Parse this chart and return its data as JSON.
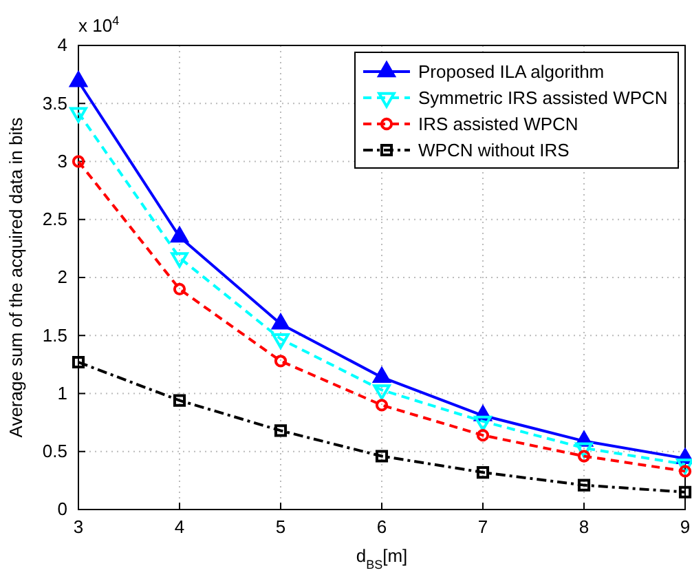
{
  "chart_data": {
    "type": "line",
    "xlabel": "d$_{BS}$[m]",
    "ylabel": "Average sum of the acquired data in bits",
    "annotations": [
      "x 10$^{4}$"
    ],
    "x": [
      3,
      4,
      5,
      6,
      7,
      8,
      9
    ],
    "xlim": [
      3,
      9
    ],
    "xticks": [
      3,
      4,
      5,
      6,
      7,
      8,
      9
    ],
    "ylim": [
      0,
      4
    ],
    "yticks": [
      0,
      0.5,
      1,
      1.5,
      2,
      2.5,
      3,
      3.5,
      4
    ],
    "grid": true,
    "legend": "top right",
    "series": [
      {
        "name": "Proposed ILA algorithm",
        "color": "#0000ff",
        "marker": "triangle",
        "line_style": "solid",
        "values": [
          3.69,
          2.35,
          1.6,
          1.14,
          0.81,
          0.59,
          0.44
        ]
      },
      {
        "name": "Symmetric IRS assisted WPCN",
        "color": "#00ffff",
        "marker": "triangle-down",
        "line_style": "dashed",
        "values": [
          3.42,
          2.17,
          1.47,
          1.03,
          0.76,
          0.53,
          0.39
        ]
      },
      {
        "name": "IRS assisted WPCN",
        "color": "#ff0000",
        "marker": "circle",
        "line_style": "dashed",
        "values": [
          3.0,
          1.9,
          1.28,
          0.9,
          0.64,
          0.46,
          0.33
        ]
      },
      {
        "name": "WPCN without IRS",
        "color": "#000000",
        "marker": "square",
        "line_style": "dashdot",
        "values": [
          1.27,
          0.94,
          0.68,
          0.46,
          0.32,
          0.21,
          0.15
        ]
      }
    ]
  }
}
